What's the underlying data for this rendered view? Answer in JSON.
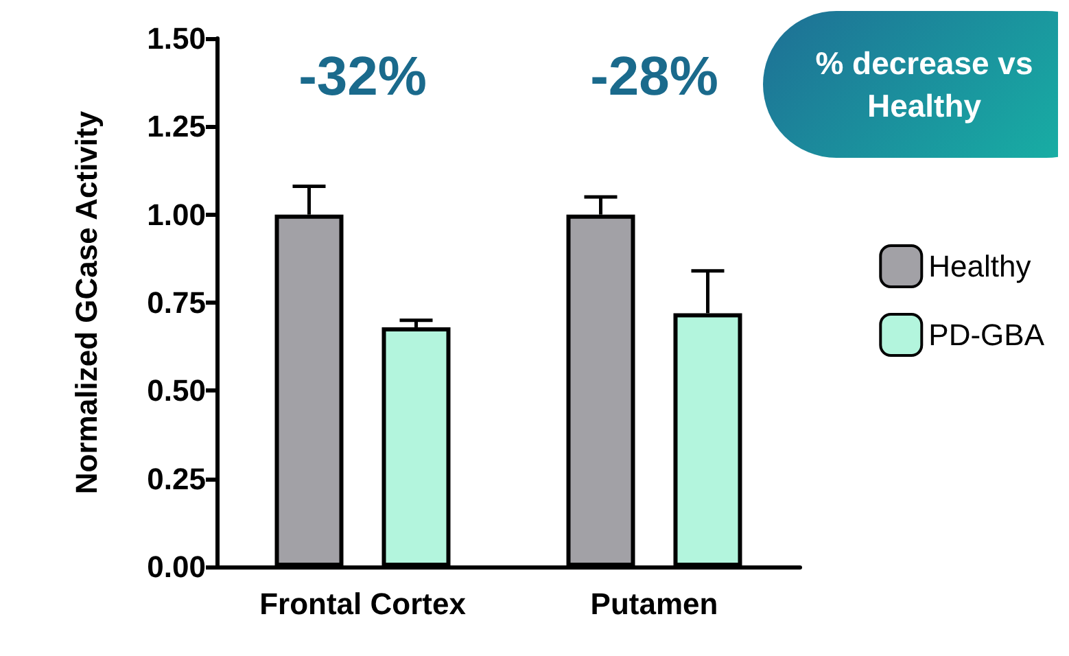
{
  "chart_data": {
    "type": "bar",
    "ylabel": "Normalized GCase Activity",
    "categories": [
      "Frontal Cortex",
      "Putamen"
    ],
    "series": [
      {
        "name": "Healthy",
        "color": "#a2a1a6",
        "values": [
          1.0,
          1.0
        ],
        "errors": [
          0.08,
          0.05
        ]
      },
      {
        "name": "PD-GBA",
        "color": "#b3f5dd",
        "values": [
          0.68,
          0.72
        ],
        "errors": [
          0.02,
          0.12
        ]
      }
    ],
    "ylim": [
      0,
      1.5
    ],
    "yticks": [
      {
        "value": 0,
        "label": "0.00"
      },
      0.25,
      {
        "value": 0.5,
        "label": "0.50"
      },
      0.75,
      {
        "value": 1,
        "label": "1.00"
      },
      1.25,
      {
        "value": 1.5,
        "label": "1.50"
      }
    ],
    "annotations": [
      "-32%",
      "-28%",
      "% decrease vs Healthy"
    ],
    "legend": "right",
    "grid": false
  }
}
